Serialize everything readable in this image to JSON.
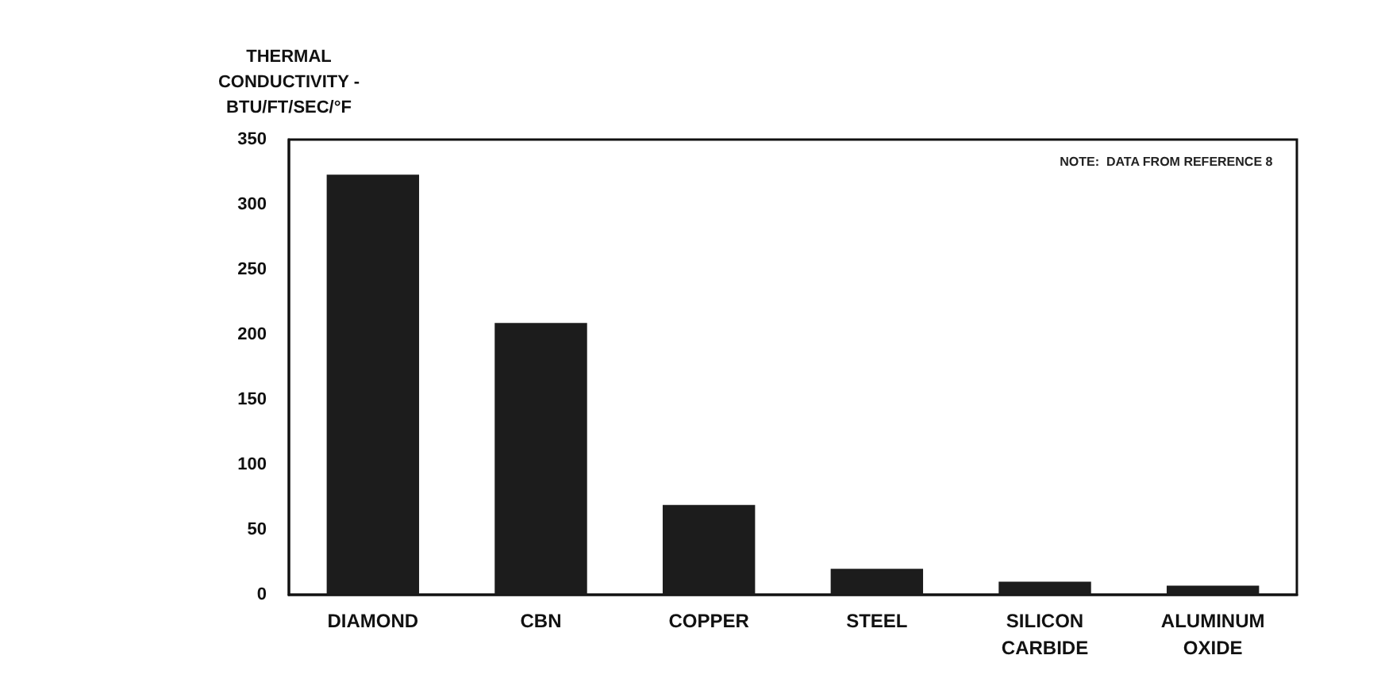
{
  "chart_data": {
    "type": "bar",
    "ylabel": "THERMAL\nCONDUCTIVITY -\nBTU/FT/SEC/°F",
    "categories": [
      "DIAMOND",
      "CBN",
      "COPPER",
      "STEEL",
      "SILICON\nCARBIDE",
      "ALUMINUM\nOXIDE"
    ],
    "values": [
      323,
      209,
      69,
      20,
      10,
      7
    ],
    "color": "#1c1c1c",
    "ylim": [
      0,
      350
    ],
    "yticks": [
      0,
      50,
      100,
      150,
      200,
      250,
      300,
      350
    ],
    "grid": false,
    "annotations": [
      "NOTE:  DATA FROM REFERENCE 8"
    ]
  }
}
